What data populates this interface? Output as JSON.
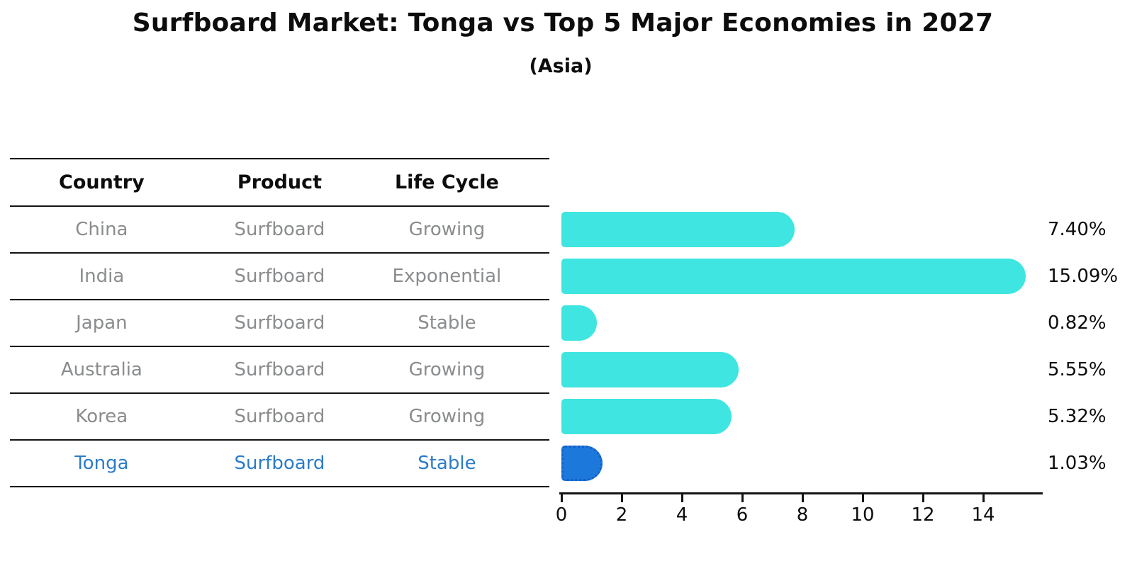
{
  "title": "Surfboard Market: Tonga vs Top 5 Major Economies in 2027",
  "subtitle": "(Asia)",
  "table": {
    "headers": [
      "Country",
      "Product",
      "Life Cycle"
    ],
    "rows": [
      {
        "country": "China",
        "product": "Surfboard",
        "life_cycle": "Growing"
      },
      {
        "country": "India",
        "product": "Surfboard",
        "life_cycle": "Exponential"
      },
      {
        "country": "Japan",
        "product": "Surfboard",
        "life_cycle": "Stable"
      },
      {
        "country": "Australia",
        "product": "Surfboard",
        "life_cycle": "Growing"
      },
      {
        "country": "Korea",
        "product": "Surfboard",
        "life_cycle": "Growing"
      },
      {
        "country": "Tonga",
        "product": "Surfboard",
        "life_cycle": "Stable"
      }
    ]
  },
  "chart_data": {
    "type": "bar",
    "orientation": "horizontal",
    "categories": [
      "China",
      "India",
      "Japan",
      "Australia",
      "Korea",
      "Tonga"
    ],
    "values": [
      7.4,
      15.09,
      0.82,
      5.55,
      5.32,
      1.03
    ],
    "value_labels": [
      "7.40%",
      "15.09%",
      "0.82%",
      "5.55%",
      "5.32%",
      "1.03%"
    ],
    "highlight_category": "Tonga",
    "highlight_index": 5,
    "x_ticks": [
      "0",
      "2",
      "4",
      "6",
      "8",
      "10",
      "12",
      "14"
    ],
    "x_tick_values": [
      0,
      2,
      4,
      6,
      8,
      10,
      12,
      14
    ],
    "xlim": [
      0,
      16
    ],
    "grid": false,
    "legend": false
  },
  "colors": {
    "bar_default": "#3fe5e0",
    "bar_highlight": "#1d78dc",
    "highlight_text": "#2c7bc7",
    "table_text": "#8a8c8e",
    "axis": "#141414",
    "label_text": "#0d0d0d"
  }
}
